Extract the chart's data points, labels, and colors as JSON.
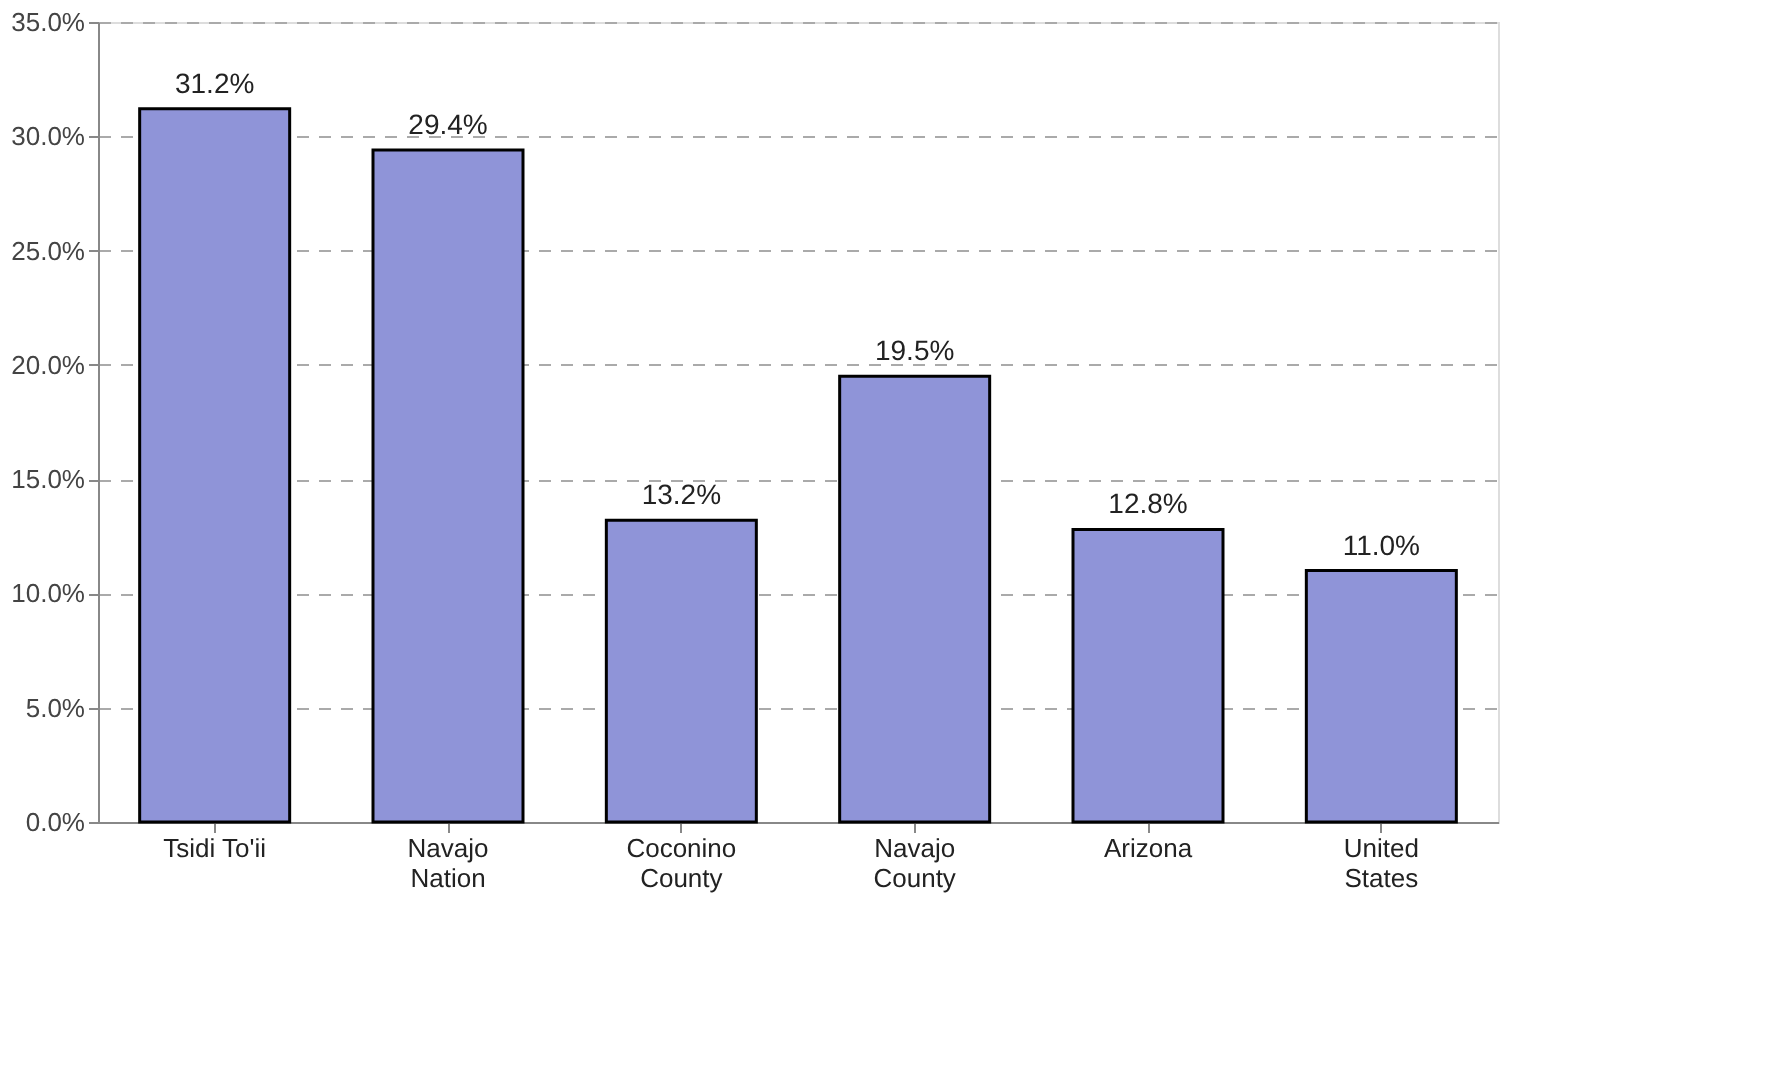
{
  "chart_data": {
    "type": "bar",
    "categories": [
      "Tsidi To'ii",
      "Navajo Nation",
      "Coconino County",
      "Navajo County",
      "Arizona",
      "United States"
    ],
    "values": [
      31.2,
      29.4,
      13.2,
      19.5,
      12.8,
      11.0
    ],
    "value_labels": [
      "31.2%",
      "29.4%",
      "13.2%",
      "19.5%",
      "12.8%",
      "11.0%"
    ],
    "color": "#8f94d8",
    "ylim": [
      0,
      35
    ],
    "yticks": [
      {
        "value": 0,
        "label": "0.0%"
      },
      {
        "value": 5,
        "label": "5.0%"
      },
      {
        "value": 10,
        "label": "10.0%"
      },
      {
        "value": 15,
        "label": "15.0%"
      },
      {
        "value": 20,
        "label": "20.0%"
      },
      {
        "value": 25,
        "label": "25.0%"
      },
      {
        "value": 30,
        "label": "30.0%"
      },
      {
        "value": 35,
        "label": "35.0%"
      }
    ],
    "grid": "y"
  }
}
